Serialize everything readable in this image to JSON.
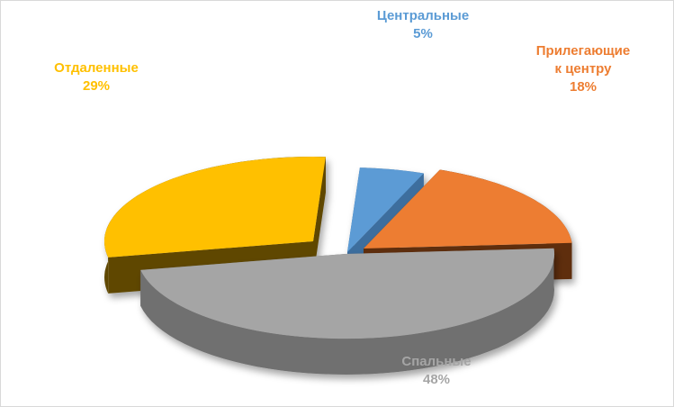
{
  "chart_data": {
    "type": "pie",
    "title": "",
    "slices": [
      {
        "label": "Центральные",
        "value": 5,
        "value_label": "5%",
        "color": "#5b9bd5",
        "side": "#3d6e9e"
      },
      {
        "label": "Прилегающие к центру",
        "label_lines": [
          "Прилегающие",
          "к центру"
        ],
        "value": 18,
        "value_label": "18%",
        "color": "#ed7d31",
        "side": "#5e2e10"
      },
      {
        "label": "Спальные",
        "value": 48,
        "value_label": "48%",
        "color": "#a5a5a5",
        "side": "#6f6f6f"
      },
      {
        "label": "Отдаленные",
        "value": 29,
        "value_label": "29%",
        "color": "#ffc000",
        "side": "#5f4700"
      }
    ],
    "legend": "none",
    "style": "3d-exploded"
  }
}
